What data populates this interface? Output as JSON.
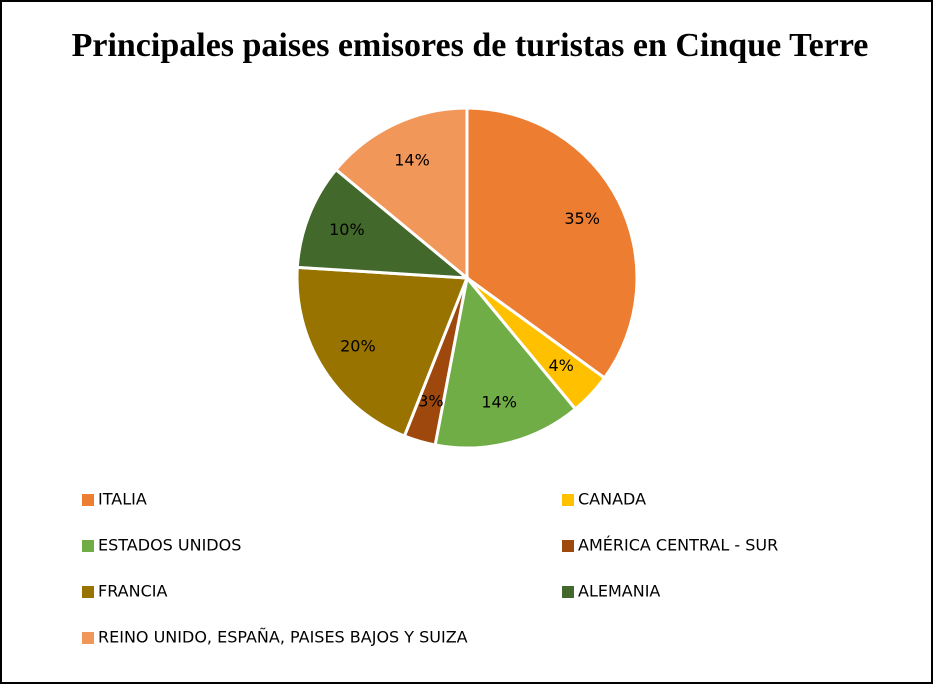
{
  "chart_data": {
    "type": "pie",
    "title": "Principales paises emisores de turistas en Cinque Terre",
    "categories": [
      "ITALIA",
      "CANADA",
      "ESTADOS UNIDOS",
      "AMÉRICA CENTRAL - SUR",
      "FRANCIA",
      "ALEMANIA",
      "REINO UNIDO, ESPAÑA, PAISES BAJOS Y SUIZA"
    ],
    "values": [
      35,
      4,
      14,
      3,
      20,
      10,
      14
    ],
    "value_labels": [
      "35%",
      "4%",
      "14%",
      "3%",
      "20%",
      "10%",
      "14%"
    ],
    "colors": [
      "#ED7D31",
      "#FFC000",
      "#70AD47",
      "#9E480E",
      "#997300",
      "#43682B",
      "#F1975A"
    ],
    "legend": "bottom"
  }
}
